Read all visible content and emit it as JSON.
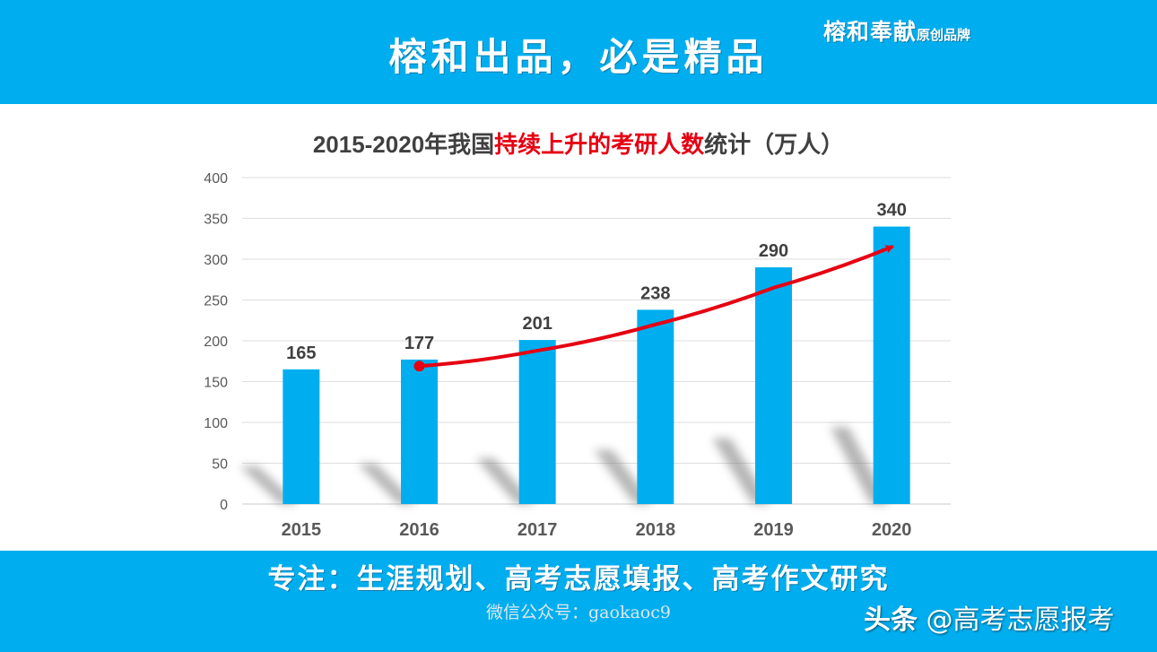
{
  "header": {
    "headline": "榕和出品，必是精品",
    "brand_main": "榕和奉献",
    "brand_sub": "原创品牌"
  },
  "footer": {
    "tagline": "专注：生涯规划、高考志愿填报、高考作文研究",
    "wechat": "微信公众号：gaokaoc9",
    "watermark_lead": "头条",
    "watermark_handle": "@高考志愿报考"
  },
  "colors": {
    "band": "#00aeef",
    "bar": "#00aeef",
    "trend_arrow": "#e60012",
    "title_highlight": "#e60012"
  },
  "chart_data": {
    "type": "bar",
    "title_parts": {
      "prefix": "2015-2020年我国",
      "highlight": "持续上升的考研人数",
      "suffix": "统计（万人）"
    },
    "categories": [
      "2015",
      "2016",
      "2017",
      "2018",
      "2019",
      "2020"
    ],
    "values": [
      165,
      177,
      201,
      238,
      290,
      340
    ],
    "data_labels": [
      "165",
      "177",
      "201",
      "238",
      "290",
      "340"
    ],
    "y_ticks": [
      0,
      50,
      100,
      150,
      200,
      250,
      300,
      350,
      400
    ],
    "y_tick_labels": [
      "0",
      "50",
      "100",
      "150",
      "200",
      "250",
      "300",
      "350",
      "400"
    ],
    "ylim": [
      0,
      400
    ],
    "grid": true,
    "legend": "none",
    "trend_arrow": {
      "from_category": "2016",
      "to_category": "2020",
      "points": [
        [
          2016,
          169
        ],
        [
          2017,
          188
        ],
        [
          2018,
          220
        ],
        [
          2019,
          265
        ],
        [
          2020,
          315
        ]
      ]
    }
  }
}
